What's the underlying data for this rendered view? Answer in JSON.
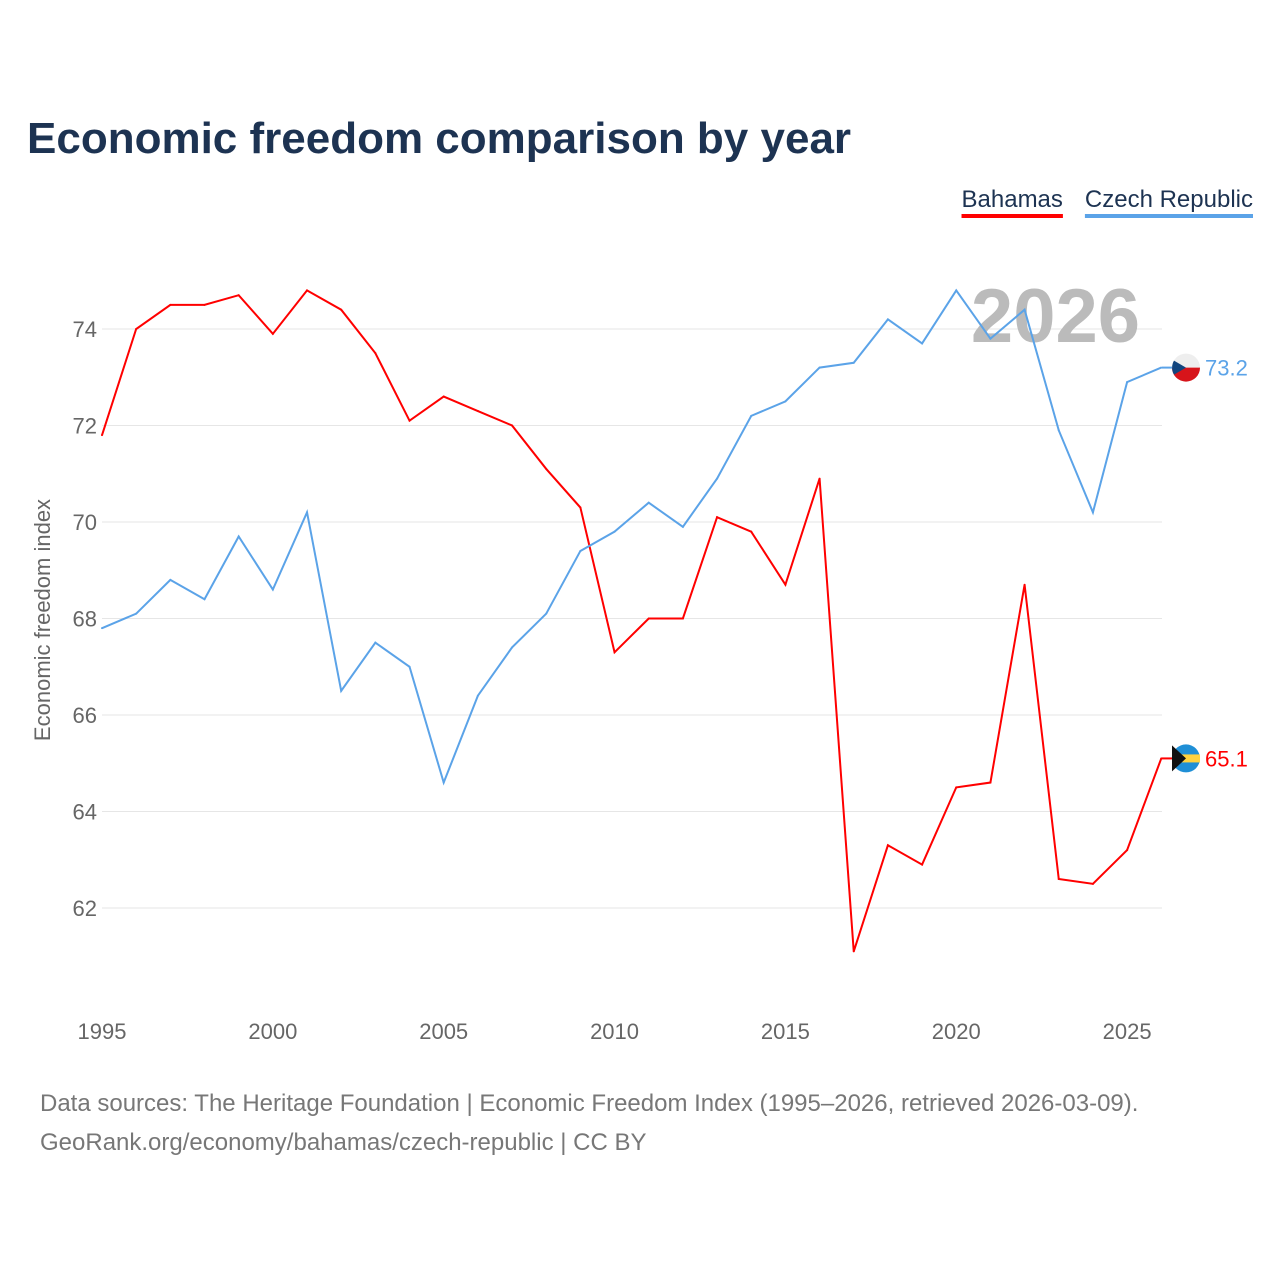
{
  "chart_data": {
    "type": "line",
    "title": "Economic freedom comparison by year",
    "ylabel": "Economic freedom index",
    "xlabel": "",
    "watermark_year": "2026",
    "x": [
      1995,
      1996,
      1997,
      1998,
      1999,
      2000,
      2001,
      2002,
      2003,
      2004,
      2005,
      2006,
      2007,
      2008,
      2009,
      2010,
      2011,
      2012,
      2013,
      2014,
      2015,
      2016,
      2017,
      2018,
      2019,
      2020,
      2021,
      2022,
      2023,
      2024,
      2025,
      2026
    ],
    "xticks": [
      "1995",
      "2000",
      "2005",
      "2010",
      "2015",
      "2020",
      "2025"
    ],
    "yticks": [
      "62",
      "64",
      "66",
      "68",
      "70",
      "72",
      "74"
    ],
    "ylim": [
      60,
      76
    ],
    "legend_position": "top-right",
    "series": [
      {
        "name": "Bahamas",
        "color": "#ff0000",
        "end_label": "65.1",
        "values": [
          71.8,
          74.0,
          74.5,
          74.5,
          74.7,
          73.9,
          74.8,
          74.4,
          73.5,
          72.1,
          72.6,
          72.3,
          72.0,
          71.1,
          70.3,
          67.3,
          68.0,
          68.0,
          70.1,
          69.8,
          68.7,
          70.9,
          61.1,
          63.3,
          62.9,
          64.5,
          64.6,
          68.7,
          62.6,
          62.5,
          63.2,
          65.1
        ]
      },
      {
        "name": "Czech Republic",
        "color": "#5ba3e8",
        "end_label": "73.2",
        "values": [
          67.8,
          68.1,
          68.8,
          68.4,
          69.7,
          68.6,
          70.2,
          66.5,
          67.5,
          67.0,
          64.6,
          66.4,
          67.4,
          68.1,
          69.4,
          69.8,
          70.4,
          69.9,
          70.9,
          72.2,
          72.5,
          73.2,
          73.3,
          74.2,
          73.7,
          74.8,
          73.8,
          74.4,
          71.9,
          70.2,
          72.9,
          73.2
        ]
      }
    ]
  },
  "footer": {
    "line1": "Data sources: The Heritage Foundation | Economic Freedom Index (1995–2026, retrieved 2026-03-09).",
    "line2": "GeoRank.org/economy/bahamas/czech-republic | CC BY"
  }
}
